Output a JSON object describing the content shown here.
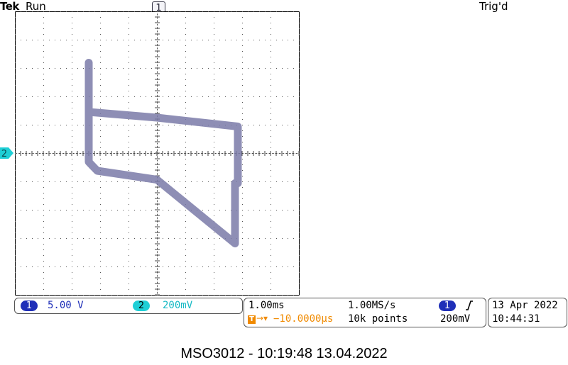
{
  "header": {
    "brand": "Tek",
    "run_state": "Run",
    "trigger_state": "Trig'd",
    "trigger_position_marker": "1",
    "channel2_marker": "2"
  },
  "colors": {
    "ch1": "#1f2fb8",
    "ch2": "#1ecfd6",
    "trace": "#7a7aa8",
    "trigger": "#f08a00"
  },
  "vertical": {
    "ch1_badge": "1",
    "ch1_scale": "5.00 V",
    "ch2_badge": "2",
    "ch2_scale": "200mV"
  },
  "horizontal": {
    "timebase": "1.00ms",
    "sample_rate": "1.00MS/s",
    "trigger_delay": "−10.0000µs",
    "record_length": "10k points",
    "trigger_channel": "1",
    "trigger_slope_icon": "rising-edge-icon",
    "trigger_level": "200mV"
  },
  "datetime": {
    "date": "13 Apr 2022",
    "time": "10:44:31"
  },
  "caption": "MSO3012 - 10:19:48   13.04.2022",
  "chart_data": {
    "type": "line",
    "mode": "XY",
    "grid": true,
    "xlim": [
      -5,
      5
    ],
    "ylim": [
      -4,
      4
    ],
    "series": [
      {
        "x": [
          -2.4,
          -2.4,
          -2.3,
          -2.25,
          0.0,
          2.85,
          2.85,
          2.75,
          2.75,
          2.75,
          0.0,
          -2.1,
          -2.4,
          -2.4
        ],
        "y": [
          2.55,
          1.15,
          1.15,
          1.15,
          1.0,
          0.75,
          -0.85,
          -0.9,
          -0.85,
          -2.55,
          -0.75,
          -0.5,
          -0.25,
          2.55
        ]
      }
    ]
  }
}
